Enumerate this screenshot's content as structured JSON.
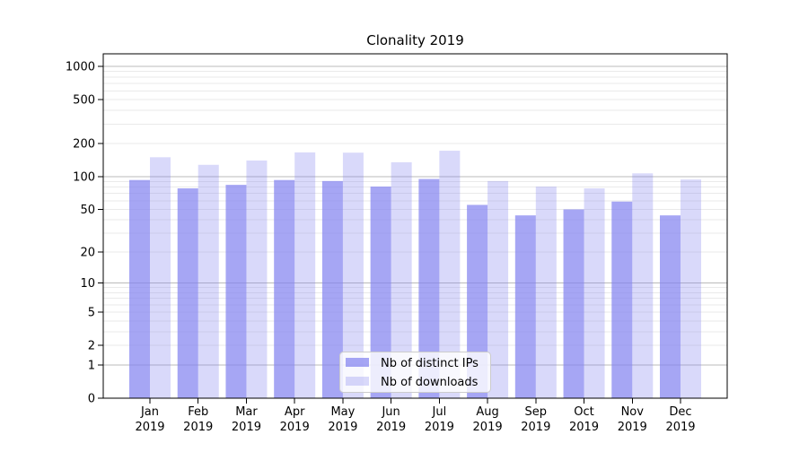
{
  "figure": {
    "background": "#ffffff"
  },
  "chart_data": {
    "type": "bar",
    "title": "Clonality 2019",
    "categories": [
      "Jan 2019",
      "Feb 2019",
      "Mar 2019",
      "Apr 2019",
      "May 2019",
      "Jun 2019",
      "Jul 2019",
      "Aug 2019",
      "Sep 2019",
      "Oct 2019",
      "Nov 2019",
      "Dec 2019"
    ],
    "series": [
      {
        "name": "Nb of distinct IPs",
        "color": "rgba(128,128,240,0.7)",
        "values": [
          93,
          78,
          84,
          93,
          91,
          81,
          95,
          55,
          44,
          50,
          59,
          44
        ]
      },
      {
        "name": "Nb of downloads",
        "color": "rgba(128,128,240,0.3)",
        "values": [
          150,
          128,
          140,
          166,
          165,
          135,
          172,
          91,
          81,
          78,
          107,
          94
        ]
      }
    ],
    "xlabel": "",
    "ylabel": "",
    "yscale": "symlog (y proportional to log10(1+v))",
    "yticks": [
      0,
      1,
      2,
      5,
      10,
      20,
      50,
      100,
      200,
      500,
      1000
    ],
    "ylim": [
      0,
      1300
    ],
    "grid": "major and minor horizontal gridlines",
    "legend_position": "inside lower center"
  },
  "colors": {
    "bar_base": "#8080f0",
    "major_grid": "#bbbbbb",
    "minor_grid": "#eaeaea",
    "axis": "#000000",
    "legend_border": "#cccccc",
    "text": "#000000"
  }
}
